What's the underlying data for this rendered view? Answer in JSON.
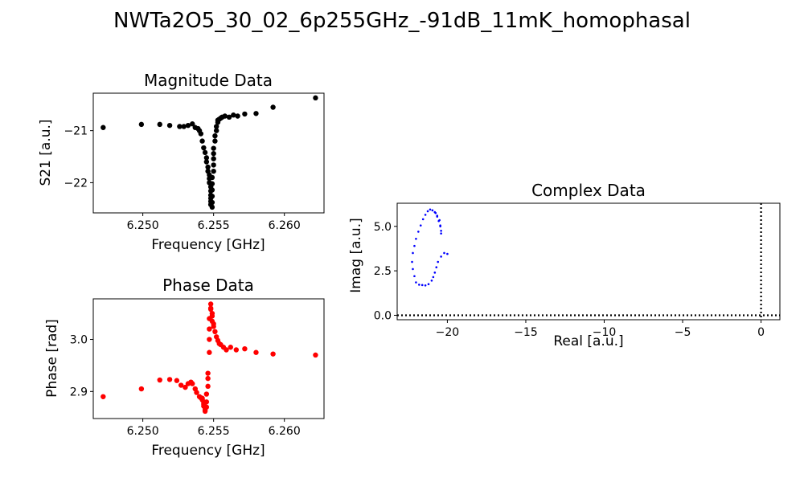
{
  "suptitle": "NWTa2O5_30_02_6p255GHz_-91dB_11mK_homophasal",
  "chart_data": [
    {
      "type": "scatter",
      "title": "Magnitude Data",
      "xlabel": "Frequency [GHz]",
      "ylabel": "S21 [a.u.]",
      "xlim": [
        6.2465,
        6.2628
      ],
      "ylim": [
        -22.58,
        -20.28
      ],
      "xticks": [
        6.25,
        6.255,
        6.26
      ],
      "xtick_labels": [
        "6.250",
        "6.255",
        "6.260"
      ],
      "yticks": [
        -21,
        -22
      ],
      "ytick_labels": [
        "−21",
        "−22"
      ],
      "color": "#000000",
      "x": [
        6.2472,
        6.2499,
        6.2512,
        6.2519,
        6.2526,
        6.2529,
        6.2532,
        6.2535,
        6.2537,
        6.2539,
        6.254,
        6.2541,
        6.2542,
        6.2543,
        6.2544,
        6.2545,
        6.2545,
        6.2546,
        6.2546,
        6.2547,
        6.2547,
        6.2547,
        6.2548,
        6.2548,
        6.2548,
        6.2548,
        6.2548,
        6.2548,
        6.2549,
        6.2549,
        6.2549,
        6.2549,
        6.2549,
        6.2549,
        6.255,
        6.255,
        6.255,
        6.255,
        6.255,
        6.2551,
        6.2551,
        6.2552,
        6.2552,
        6.2553,
        6.2553,
        6.2554,
        6.2555,
        6.2556,
        6.2558,
        6.2561,
        6.2564,
        6.2567,
        6.2572,
        6.258,
        6.2592,
        6.2622
      ],
      "y": [
        -20.94,
        -20.88,
        -20.88,
        -20.9,
        -20.92,
        -20.92,
        -20.9,
        -20.87,
        -20.94,
        -20.96,
        -21.0,
        -21.06,
        -21.2,
        -21.33,
        -21.42,
        -21.52,
        -21.6,
        -21.7,
        -21.78,
        -21.85,
        -21.92,
        -22.0,
        -22.08,
        -22.16,
        -22.24,
        -22.3,
        -22.36,
        -22.42,
        -22.47,
        -22.38,
        -22.26,
        -22.14,
        -22.02,
        -21.9,
        -21.78,
        -21.66,
        -21.54,
        -21.44,
        -21.34,
        -21.2,
        -21.1,
        -21.0,
        -20.92,
        -20.84,
        -20.8,
        -20.78,
        -20.76,
        -20.74,
        -20.72,
        -20.74,
        -20.7,
        -20.72,
        -20.68,
        -20.67,
        -20.55,
        -20.37
      ]
    },
    {
      "type": "scatter",
      "title": "Phase Data",
      "xlabel": "Frequency [GHz]",
      "ylabel": "Phase [rad]",
      "xlim": [
        6.2465,
        6.2628
      ],
      "ylim": [
        2.848,
        3.078
      ],
      "xticks": [
        6.25,
        6.255,
        6.26
      ],
      "xtick_labels": [
        "6.250",
        "6.255",
        "6.260"
      ],
      "yticks": [
        3.0,
        2.9
      ],
      "ytick_labels": [
        "3.0",
        "2.9"
      ],
      "color": "#ff0000",
      "x": [
        6.2472,
        6.2499,
        6.2512,
        6.2519,
        6.2524,
        6.2527,
        6.253,
        6.2532,
        6.2534,
        6.2535,
        6.2537,
        6.2538,
        6.254,
        6.2541,
        6.2542,
        6.2542,
        6.2543,
        6.2543,
        6.2543,
        6.2544,
        6.2544,
        6.2544,
        6.2545,
        6.2545,
        6.2545,
        6.2546,
        6.2546,
        6.2546,
        6.2547,
        6.2547,
        6.2547,
        6.2547,
        6.2548,
        6.2548,
        6.2548,
        6.2549,
        6.2549,
        6.2549,
        6.255,
        6.255,
        6.2551,
        6.2552,
        6.2553,
        6.2554,
        6.2555,
        6.2557,
        6.2559,
        6.2562,
        6.2566,
        6.2572,
        6.258,
        6.2592,
        6.2622
      ],
      "y": [
        2.89,
        2.905,
        2.922,
        2.923,
        2.921,
        2.912,
        2.908,
        2.915,
        2.918,
        2.915,
        2.905,
        2.898,
        2.89,
        2.888,
        2.887,
        2.884,
        2.88,
        2.876,
        2.872,
        2.868,
        2.864,
        2.862,
        2.87,
        2.88,
        2.895,
        2.91,
        2.925,
        2.935,
        2.975,
        3.0,
        3.02,
        3.04,
        3.058,
        3.068,
        3.06,
        3.05,
        3.045,
        3.035,
        3.03,
        3.025,
        3.015,
        3.005,
        2.998,
        2.992,
        2.99,
        2.985,
        2.98,
        2.985,
        2.98,
        2.982,
        2.975,
        2.972,
        2.97
      ]
    },
    {
      "type": "scatter",
      "title": "Complex Data",
      "xlabel": "Real [a.u.]",
      "ylabel": "Imag [a.u.]",
      "xlim": [
        -23.2,
        1.2
      ],
      "ylim": [
        -0.25,
        6.3
      ],
      "xticks": [
        -20,
        -15,
        -10,
        -5,
        0
      ],
      "xtick_labels": [
        "−20",
        "−15",
        "−10",
        "−5",
        "0"
      ],
      "yticks": [
        0.0,
        2.5,
        5.0
      ],
      "ytick_labels": [
        "0.0",
        "2.5",
        "5.0"
      ],
      "color": "#0000ff",
      "reference_lines": {
        "x": 0,
        "y": 0,
        "style": "dotted",
        "color": "#000000"
      },
      "x": [
        -20.0,
        -20.2,
        -20.4,
        -20.6,
        -20.7,
        -20.8,
        -20.9,
        -21.0,
        -21.2,
        -21.4,
        -21.6,
        -21.8,
        -22.0,
        -22.1,
        -22.2,
        -22.25,
        -22.2,
        -22.1,
        -22.0,
        -21.85,
        -21.7,
        -21.55,
        -21.4,
        -21.25,
        -21.1,
        -20.95,
        -20.8,
        -20.65,
        -20.5,
        -20.45,
        -20.4,
        -20.4,
        -20.45,
        -20.55,
        -20.65,
        -20.75
      ],
      "y": [
        3.45,
        3.5,
        3.3,
        3.0,
        2.7,
        2.4,
        2.15,
        1.95,
        1.75,
        1.68,
        1.7,
        1.72,
        1.85,
        2.2,
        2.6,
        3.0,
        3.5,
        3.9,
        4.3,
        4.7,
        5.05,
        5.4,
        5.65,
        5.85,
        5.95,
        5.9,
        5.8,
        5.6,
        5.35,
        5.05,
        4.75,
        4.6,
        5.0,
        5.3,
        5.55,
        5.75
      ]
    }
  ]
}
